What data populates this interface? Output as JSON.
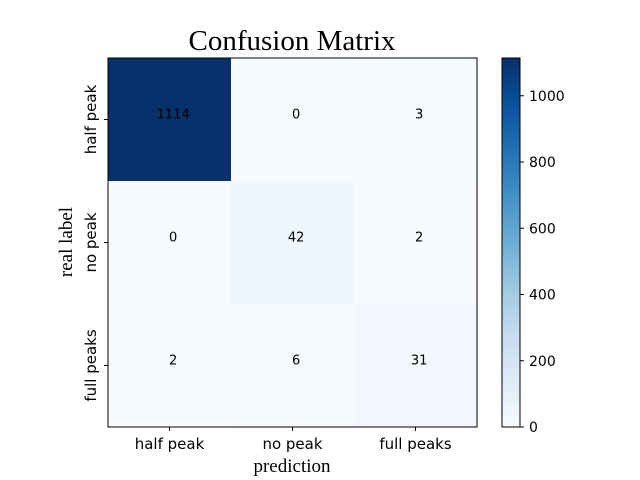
{
  "chart_data": {
    "type": "heatmap",
    "title": "Confusion Matrix",
    "xlabel": "prediction",
    "ylabel": "real label",
    "x_categories": [
      "half peak",
      "no peak",
      "full peaks"
    ],
    "y_categories": [
      "half peak",
      "no peak",
      "full peaks"
    ],
    "values": [
      [
        1114,
        0,
        3
      ],
      [
        0,
        42,
        2
      ],
      [
        2,
        6,
        31
      ]
    ],
    "colorbar": {
      "min": 0,
      "max": 1114,
      "ticks": [
        0,
        200,
        400,
        600,
        800,
        1000
      ],
      "colormap": "Blues"
    },
    "colors": {
      "low": "#f7fbff",
      "high": "#08306b"
    }
  }
}
